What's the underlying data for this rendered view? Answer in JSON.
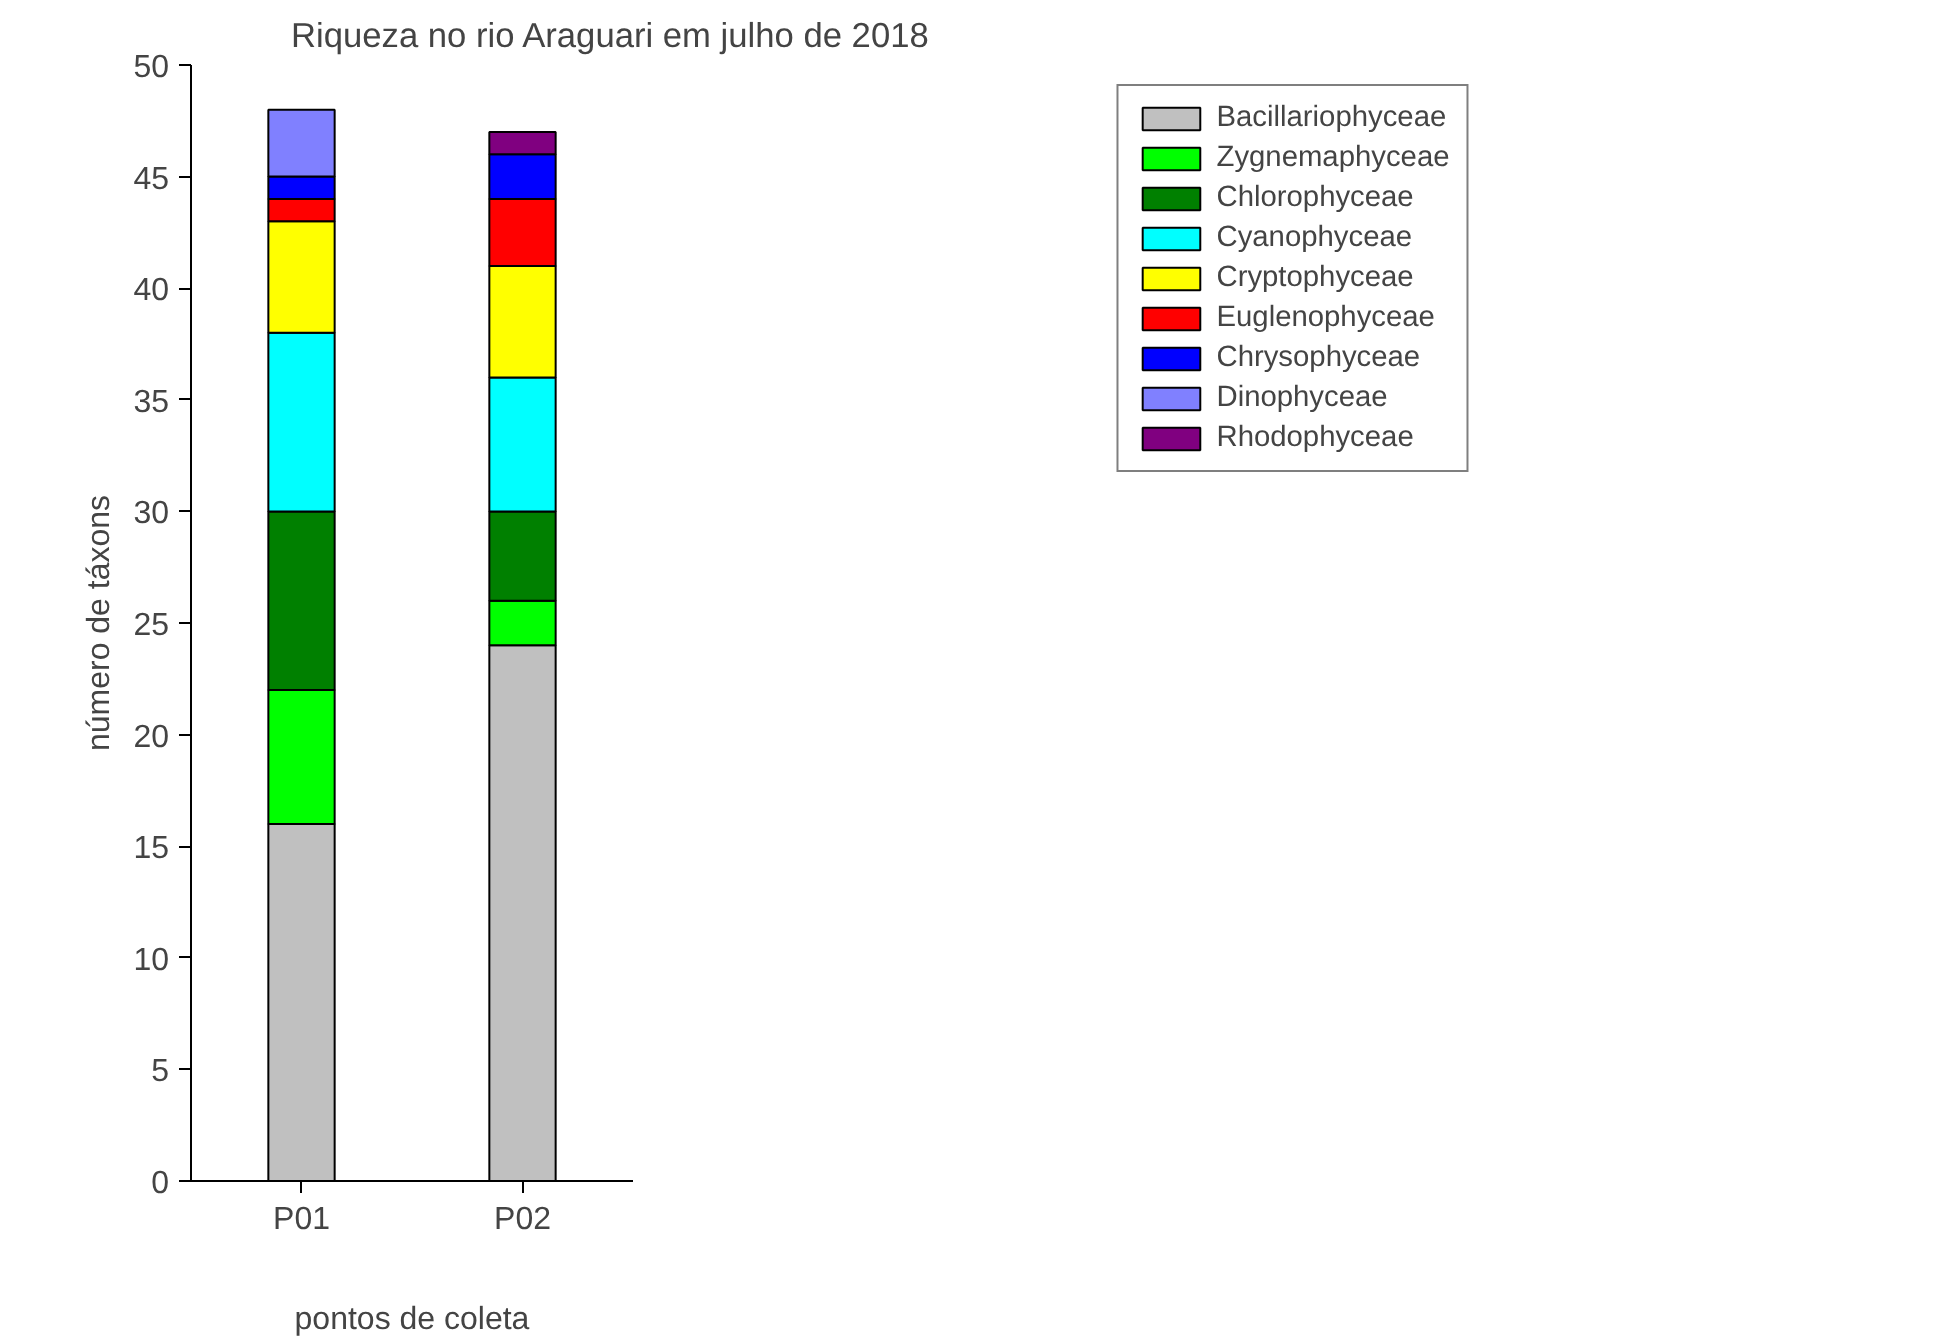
{
  "chart_data": {
    "type": "bar",
    "title": "Riqueza no rio Araguari em julho de 2018",
    "xlabel": "pontos de coleta",
    "ylabel": "número de táxons",
    "categories": [
      "P01",
      "P02"
    ],
    "stacked": true,
    "ylim": [
      0,
      50
    ],
    "yticks": [
      0,
      5,
      10,
      15,
      20,
      25,
      30,
      35,
      40,
      45,
      50
    ],
    "grid": false,
    "legend": "top right",
    "series": [
      {
        "name": "Bacillariophyceae",
        "color": "#c0c0c0",
        "values": [
          16,
          24
        ]
      },
      {
        "name": "Zygnemaphyceae",
        "color": "#00ff00",
        "values": [
          6,
          2
        ]
      },
      {
        "name": "Chlorophyceae",
        "color": "#008000",
        "values": [
          8,
          4
        ]
      },
      {
        "name": "Cyanophyceae",
        "color": "#00ffff",
        "values": [
          8,
          6
        ]
      },
      {
        "name": "Cryptophyceae",
        "color": "#ffff00",
        "values": [
          5,
          5
        ]
      },
      {
        "name": "Euglenophyceae",
        "color": "#ff0000",
        "values": [
          1,
          3
        ]
      },
      {
        "name": "Chrysophyceae",
        "color": "#0000ff",
        "values": [
          1,
          2
        ]
      },
      {
        "name": "Dinophyceae",
        "color": "#8080ff",
        "values": [
          3,
          0
        ]
      },
      {
        "name": "Rhodophyceae",
        "color": "#800080",
        "values": [
          0,
          1
        ]
      }
    ]
  }
}
